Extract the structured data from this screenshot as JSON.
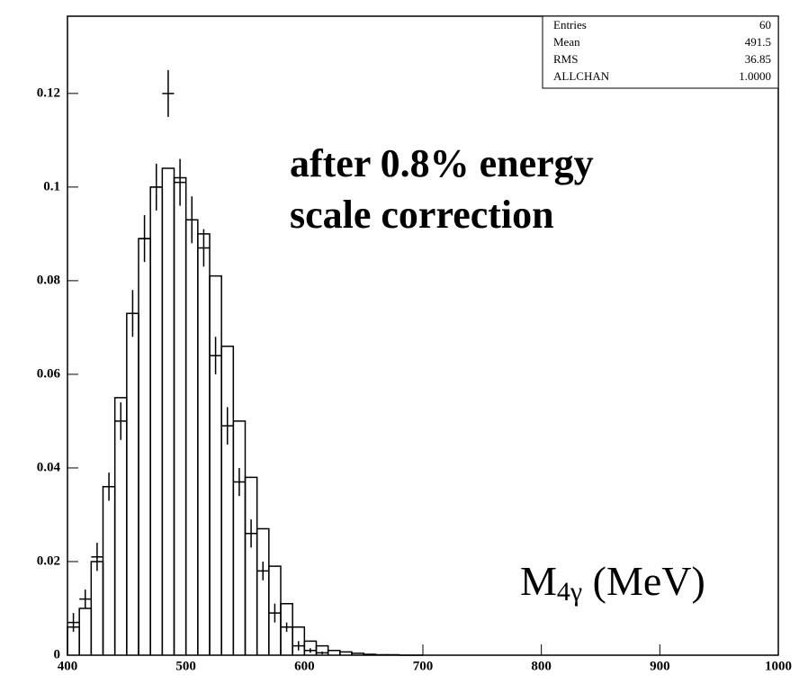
{
  "chart_data": {
    "type": "histogram",
    "bins": [
      400,
      410,
      420,
      430,
      440,
      450,
      460,
      470,
      480,
      490,
      500,
      510,
      520,
      530,
      540,
      550,
      560,
      570,
      580,
      590,
      600,
      610,
      620,
      630,
      640,
      650,
      660,
      670,
      680,
      690,
      700
    ],
    "values": [
      0.006,
      0.01,
      0.02,
      0.036,
      0.055,
      0.073,
      0.089,
      0.1,
      0.104,
      0.102,
      0.093,
      0.09,
      0.081,
      0.066,
      0.05,
      0.038,
      0.027,
      0.019,
      0.011,
      0.006,
      0.003,
      0.002,
      0.001,
      0.0007,
      0.0004,
      0.0002,
      0.0001,
      0.0001,
      0,
      0
    ],
    "points": {
      "x": [
        405,
        415,
        425,
        435,
        445,
        455,
        465,
        475,
        485,
        495,
        505,
        515,
        525,
        535,
        545,
        555,
        565,
        575,
        585,
        595,
        605,
        615
      ],
      "values": [
        0.007,
        0.012,
        0.021,
        0.036,
        0.05,
        0.073,
        0.089,
        0.1,
        0.12,
        0.101,
        0.093,
        0.087,
        0.064,
        0.049,
        0.037,
        0.026,
        0.018,
        0.009,
        0.006,
        0.002,
        0.001,
        0.0005
      ],
      "errors": [
        0.002,
        0.002,
        0.003,
        0.003,
        0.004,
        0.005,
        0.005,
        0.005,
        0.005,
        0.005,
        0.005,
        0.004,
        0.004,
        0.004,
        0.003,
        0.003,
        0.002,
        0.002,
        0.001,
        0.001,
        0.0005,
        0.0003
      ]
    },
    "xlim": [
      400,
      1000
    ],
    "ylim": [
      0,
      0.1365
    ],
    "xticks": [
      400,
      500,
      600,
      700,
      800,
      900,
      1000
    ],
    "yticks": [
      0,
      0.02,
      0.04,
      0.06,
      0.08,
      0.1,
      0.12
    ],
    "stats": [
      [
        "Entries",
        "60"
      ],
      [
        "Mean",
        "491.5"
      ],
      [
        "RMS",
        "36.85"
      ],
      [
        "ALLCHAN",
        "1.0000"
      ]
    ],
    "annotations": [
      "after 0.8% energy",
      "scale correction"
    ],
    "xlabel": {
      "main": "M",
      "sub": "4γ",
      "unit": " (MeV)"
    },
    "color": "#000000"
  }
}
